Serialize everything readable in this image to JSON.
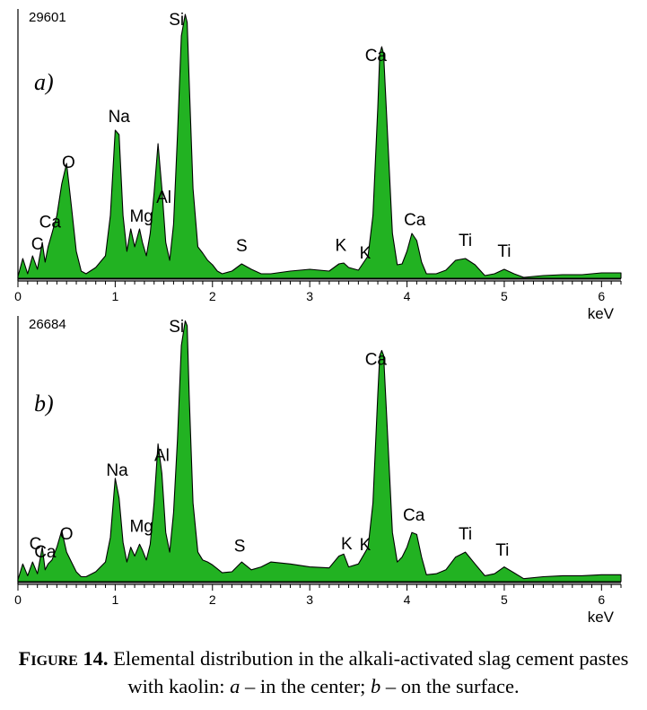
{
  "chart_data": [
    {
      "type": "area",
      "panel": "a)",
      "max_count_label": "29601",
      "xlabel": "keV",
      "xlim": [
        0,
        6.2
      ],
      "x_ticks": [
        0,
        1,
        2,
        3,
        4,
        5,
        6
      ],
      "fill_color": "#22b222",
      "series": [
        {
          "x": [
            0,
            0.05,
            0.1,
            0.15,
            0.2,
            0.25,
            0.28,
            0.31,
            0.35,
            0.4,
            0.45,
            0.5,
            0.55,
            0.6,
            0.65,
            0.7,
            0.8,
            0.9,
            0.95,
            1.0,
            1.04,
            1.08,
            1.12,
            1.16,
            1.2,
            1.25,
            1.28,
            1.32,
            1.36,
            1.4,
            1.44,
            1.48,
            1.52,
            1.56,
            1.6,
            1.64,
            1.68,
            1.72,
            1.74,
            1.76,
            1.8,
            1.85,
            1.9,
            1.95,
            2.0,
            2.05,
            2.1,
            2.2,
            2.3,
            2.4,
            2.5,
            2.6,
            2.8,
            3.0,
            3.2,
            3.3,
            3.35,
            3.4,
            3.5,
            3.6,
            3.65,
            3.7,
            3.72,
            3.74,
            3.76,
            3.8,
            3.85,
            3.9,
            3.95,
            4.0,
            4.05,
            4.1,
            4.15,
            4.2,
            4.3,
            4.4,
            4.5,
            4.6,
            4.7,
            4.8,
            4.9,
            5.0,
            5.1,
            5.2,
            5.4,
            5.6,
            5.8,
            6.0,
            6.2
          ],
          "y": [
            200,
            2200,
            500,
            2500,
            1000,
            4000,
            1800,
            3500,
            5000,
            7000,
            10500,
            12800,
            8000,
            3000,
            800,
            500,
            1200,
            2500,
            7000,
            16500,
            16000,
            7000,
            3000,
            5500,
            3500,
            5500,
            4000,
            2500,
            5000,
            9500,
            15000,
            10000,
            4000,
            2000,
            6000,
            16000,
            27000,
            29400,
            28500,
            22000,
            10000,
            3500,
            2800,
            2000,
            1500,
            800,
            500,
            800,
            1600,
            1000,
            500,
            500,
            800,
            1000,
            800,
            1600,
            1700,
            1200,
            900,
            2500,
            7000,
            19000,
            25000,
            25800,
            25000,
            16000,
            5000,
            1500,
            1600,
            3000,
            5000,
            4200,
            1800,
            500,
            500,
            900,
            2000,
            2200,
            1500,
            300,
            500,
            1000,
            500,
            100,
            300,
            400,
            400,
            600,
            600
          ]
        }
      ],
      "annotations": [
        {
          "text": "C",
          "x": 0.2
        },
        {
          "text": "Ca",
          "x": 0.33
        },
        {
          "text": "O",
          "x": 0.52
        },
        {
          "text": "Na",
          "x": 1.04
        },
        {
          "text": "Mg",
          "x": 1.27
        },
        {
          "text": "Al",
          "x": 1.5
        },
        {
          "text": "Si",
          "x": 1.63
        },
        {
          "text": "S",
          "x": 2.3
        },
        {
          "text": "K",
          "x": 3.32
        },
        {
          "text": "K",
          "x": 3.57
        },
        {
          "text": "Ca",
          "x": 3.68
        },
        {
          "text": "Ca",
          "x": 4.08
        },
        {
          "text": "Ti",
          "x": 4.6
        },
        {
          "text": "Ti",
          "x": 5.0
        }
      ]
    },
    {
      "type": "area",
      "panel": "b)",
      "max_count_label": "26684",
      "xlabel": "keV",
      "xlim": [
        0,
        6.2
      ],
      "x_ticks": [
        0,
        1,
        2,
        3,
        4,
        5,
        6
      ],
      "fill_color": "#22b222",
      "series": [
        {
          "x": [
            0,
            0.05,
            0.1,
            0.15,
            0.2,
            0.25,
            0.28,
            0.31,
            0.35,
            0.4,
            0.45,
            0.5,
            0.55,
            0.6,
            0.65,
            0.7,
            0.8,
            0.9,
            0.95,
            1.0,
            1.04,
            1.08,
            1.12,
            1.16,
            1.2,
            1.25,
            1.28,
            1.32,
            1.36,
            1.4,
            1.44,
            1.48,
            1.52,
            1.56,
            1.6,
            1.64,
            1.68,
            1.72,
            1.74,
            1.76,
            1.8,
            1.85,
            1.9,
            1.95,
            2.0,
            2.05,
            2.1,
            2.2,
            2.3,
            2.4,
            2.5,
            2.6,
            2.8,
            3.0,
            3.2,
            3.3,
            3.35,
            3.4,
            3.5,
            3.6,
            3.65,
            3.7,
            3.72,
            3.74,
            3.76,
            3.8,
            3.85,
            3.9,
            3.95,
            4.0,
            4.05,
            4.1,
            4.15,
            4.2,
            4.3,
            4.4,
            4.5,
            4.6,
            4.7,
            4.8,
            4.9,
            5.0,
            5.1,
            5.2,
            5.4,
            5.6,
            5.8,
            6.0,
            6.2
          ],
          "y": [
            200,
            1800,
            600,
            2000,
            800,
            3500,
            1200,
            1800,
            2200,
            3500,
            5200,
            3000,
            2000,
            1000,
            500,
            500,
            1000,
            2000,
            4500,
            10500,
            8500,
            4000,
            2000,
            3500,
            2600,
            3800,
            3200,
            2200,
            3800,
            8000,
            14000,
            11000,
            5000,
            3000,
            7000,
            14500,
            24000,
            26500,
            26000,
            19000,
            8000,
            3000,
            2200,
            2000,
            1700,
            1300,
            900,
            1000,
            2000,
            1200,
            1500,
            2000,
            1800,
            1500,
            1400,
            2600,
            2800,
            1500,
            1800,
            3500,
            8000,
            19000,
            23000,
            23500,
            23000,
            15000,
            5000,
            2000,
            2500,
            3500,
            5000,
            4800,
            2500,
            700,
            800,
            1200,
            2500,
            3000,
            1800,
            600,
            800,
            1500,
            900,
            300,
            500,
            600,
            600,
            700,
            700
          ]
        }
      ],
      "annotations": [
        {
          "text": "C",
          "x": 0.18
        },
        {
          "text": "Ca",
          "x": 0.28
        },
        {
          "text": "O",
          "x": 0.5
        },
        {
          "text": "Na",
          "x": 1.02
        },
        {
          "text": "Mg",
          "x": 1.27
        },
        {
          "text": "Al",
          "x": 1.48
        },
        {
          "text": "Si",
          "x": 1.63
        },
        {
          "text": "S",
          "x": 2.28
        },
        {
          "text": "K",
          "x": 3.38
        },
        {
          "text": "K",
          "x": 3.57
        },
        {
          "text": "Ca",
          "x": 3.68
        },
        {
          "text": "Ca",
          "x": 4.07
        },
        {
          "text": "Ti",
          "x": 4.6
        },
        {
          "text": "Ti",
          "x": 4.98
        }
      ]
    }
  ],
  "caption": {
    "label": "Figure 14.",
    "part1": " Elemental distribution in the alkali-activated slag cement pastes with kaolin: ",
    "var_a": "a",
    "part2": " – in the center; ",
    "var_b": "b",
    "part3": " – on the surface."
  }
}
